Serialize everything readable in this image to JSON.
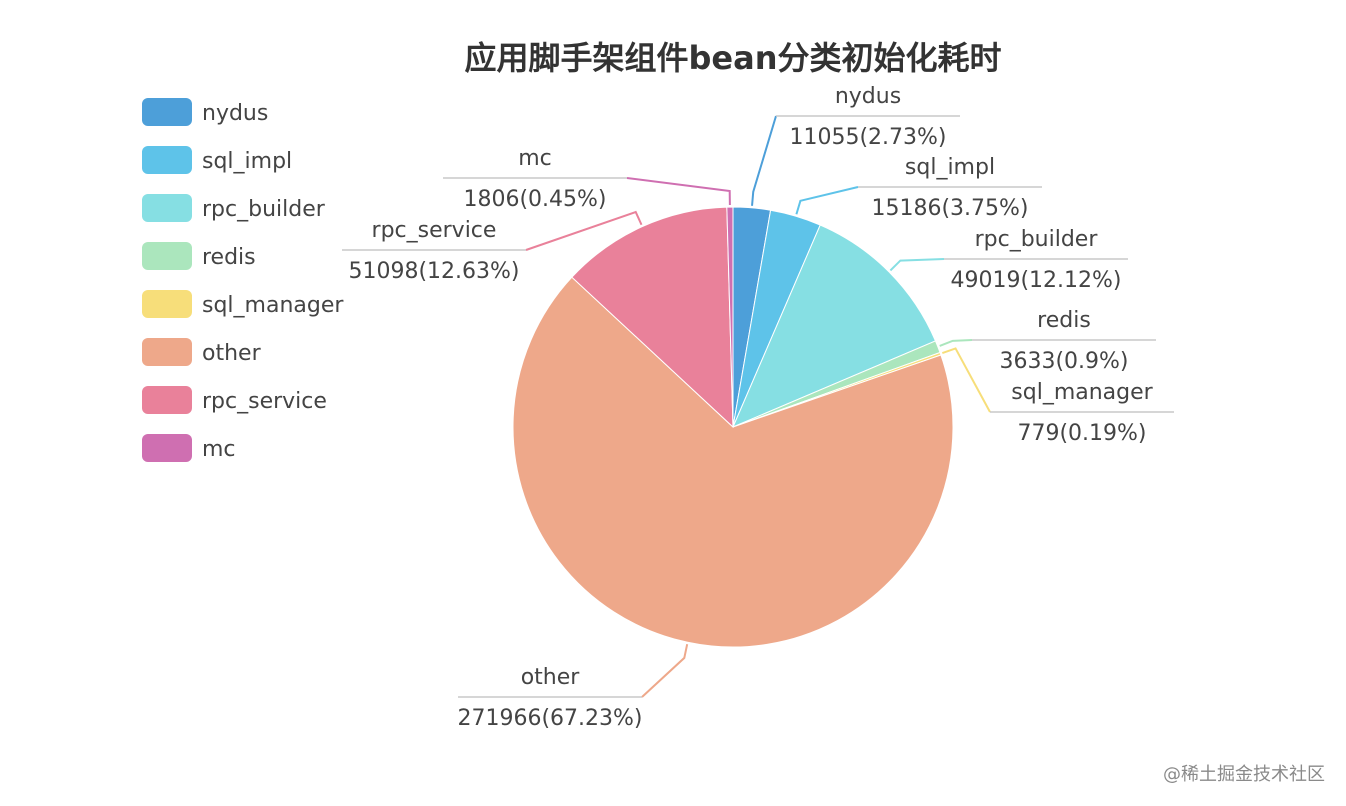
{
  "chart_data": {
    "type": "pie",
    "title": "应用脚手架组件bean分类初始化耗时",
    "legend_position": "top-left",
    "slices": [
      {
        "name": "nydus",
        "value": 11055,
        "label": "11055(2.73%)",
        "color": "#4d9fd9"
      },
      {
        "name": "sql_impl",
        "value": 15186,
        "label": "15186(3.75%)",
        "color": "#5ec3e9"
      },
      {
        "name": "rpc_builder",
        "value": 49019,
        "label": "49019(12.12%)",
        "color": "#86dfe3"
      },
      {
        "name": "redis",
        "value": 3633,
        "label": "3633(0.9%)",
        "color": "#abe6bd"
      },
      {
        "name": "sql_manager",
        "value": 779,
        "label": "779(0.19%)",
        "color": "#f7de7a"
      },
      {
        "name": "other",
        "value": 271966,
        "label": "271966(67.23%)",
        "color": "#eea88a"
      },
      {
        "name": "rpc_service",
        "value": 51098,
        "label": "51098(12.63%)",
        "color": "#e9819a"
      },
      {
        "name": "mc",
        "value": 1806,
        "label": "1806(0.45%)",
        "color": "#cf6fb1"
      }
    ]
  },
  "watermark": "@稀土掘金技术社区"
}
